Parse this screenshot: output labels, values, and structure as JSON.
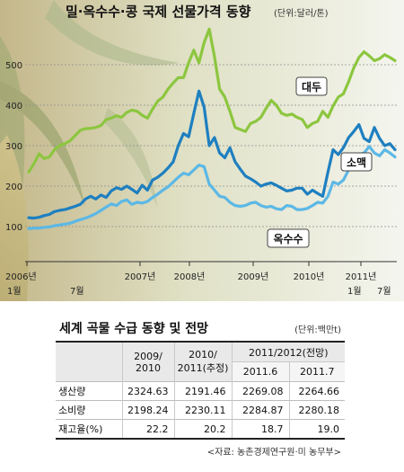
{
  "chart_data": {
    "type": "line",
    "title": "밀·옥수수·콩 국제 선물가격 동향",
    "unit": "(단위:달러/톤)",
    "ylim": [
      50,
      600
    ],
    "yticks": [
      "100",
      "200",
      "300",
      "400",
      "500"
    ],
    "x_labels": [
      "2006년",
      "2007년",
      "2008년",
      "2009년",
      "2010년",
      "2011년"
    ],
    "month_labels": [
      "1월",
      "7월",
      "1월",
      "7월"
    ],
    "series": [
      {
        "name": "대두",
        "color": "#8cc63f",
        "values": [
          235,
          255,
          280,
          268,
          272,
          290,
          300,
          305,
          312,
          325,
          338,
          342,
          343,
          345,
          350,
          364,
          368,
          374,
          370,
          382,
          388,
          385,
          375,
          368,
          390,
          410,
          420,
          440,
          455,
          468,
          468,
          505,
          536,
          505,
          555,
          588,
          520,
          440,
          420,
          385,
          345,
          340,
          335,
          355,
          360,
          370,
          392,
          412,
          400,
          380,
          375,
          378,
          370,
          365,
          345,
          355,
          360,
          385,
          370,
          398,
          420,
          428,
          458,
          492,
          518,
          532,
          522,
          510,
          515,
          525,
          518,
          510
        ]
      },
      {
        "name": "소맥",
        "color": "#1e7fc0",
        "values": [
          122,
          121,
          123,
          127,
          130,
          137,
          140,
          142,
          146,
          150,
          155,
          168,
          175,
          168,
          178,
          172,
          188,
          196,
          192,
          200,
          192,
          183,
          202,
          190,
          215,
          222,
          232,
          245,
          260,
          300,
          330,
          322,
          380,
          435,
          395,
          300,
          320,
          282,
          270,
          295,
          260,
          242,
          225,
          218,
          210,
          200,
          205,
          208,
          202,
          195,
          188,
          190,
          195,
          195,
          180,
          190,
          182,
          175,
          235,
          290,
          278,
          295,
          320,
          335,
          352,
          318,
          310,
          345,
          318,
          300,
          305,
          290
        ]
      },
      {
        "name": "옥수수",
        "color": "#5cb8e6",
        "values": [
          95,
          96,
          96,
          98,
          99,
          102,
          104,
          106,
          108,
          113,
          117,
          121,
          126,
          132,
          140,
          148,
          156,
          152,
          162,
          166,
          155,
          160,
          158,
          162,
          172,
          180,
          190,
          198,
          210,
          222,
          232,
          228,
          240,
          252,
          248,
          205,
          190,
          175,
          172,
          160,
          152,
          150,
          152,
          158,
          160,
          152,
          148,
          150,
          144,
          142,
          152,
          150,
          142,
          142,
          145,
          152,
          160,
          158,
          175,
          210,
          205,
          215,
          240,
          262,
          278,
          282,
          298,
          282,
          275,
          290,
          282,
          272
        ]
      }
    ]
  },
  "table": {
    "title": "세계 곡물 수급 동향 및 전망",
    "unit": "(단위:백만t)",
    "col1_line1": "2009/",
    "col1_line2": "2010",
    "col2_line1": "2010/",
    "col2_line2": "2011(추정)",
    "col3_group": "2011/2012(전망)",
    "col3a": "2011.6",
    "col3b": "2011.7",
    "rows": [
      {
        "label": "생산량",
        "v1": "2324.63",
        "v2": "2191.46",
        "v3": "2269.08",
        "v4": "2264.66"
      },
      {
        "label": "소비량",
        "v1": "2198.24",
        "v2": "2230.11",
        "v3": "2284.87",
        "v4": "2280.18"
      },
      {
        "label": "재고율(%)",
        "v1": "22.2",
        "v2": "20.2",
        "v3": "18.7",
        "v4": "19.0"
      }
    ],
    "source": "<자료: 농촌경제연구원·미 농무부>"
  }
}
